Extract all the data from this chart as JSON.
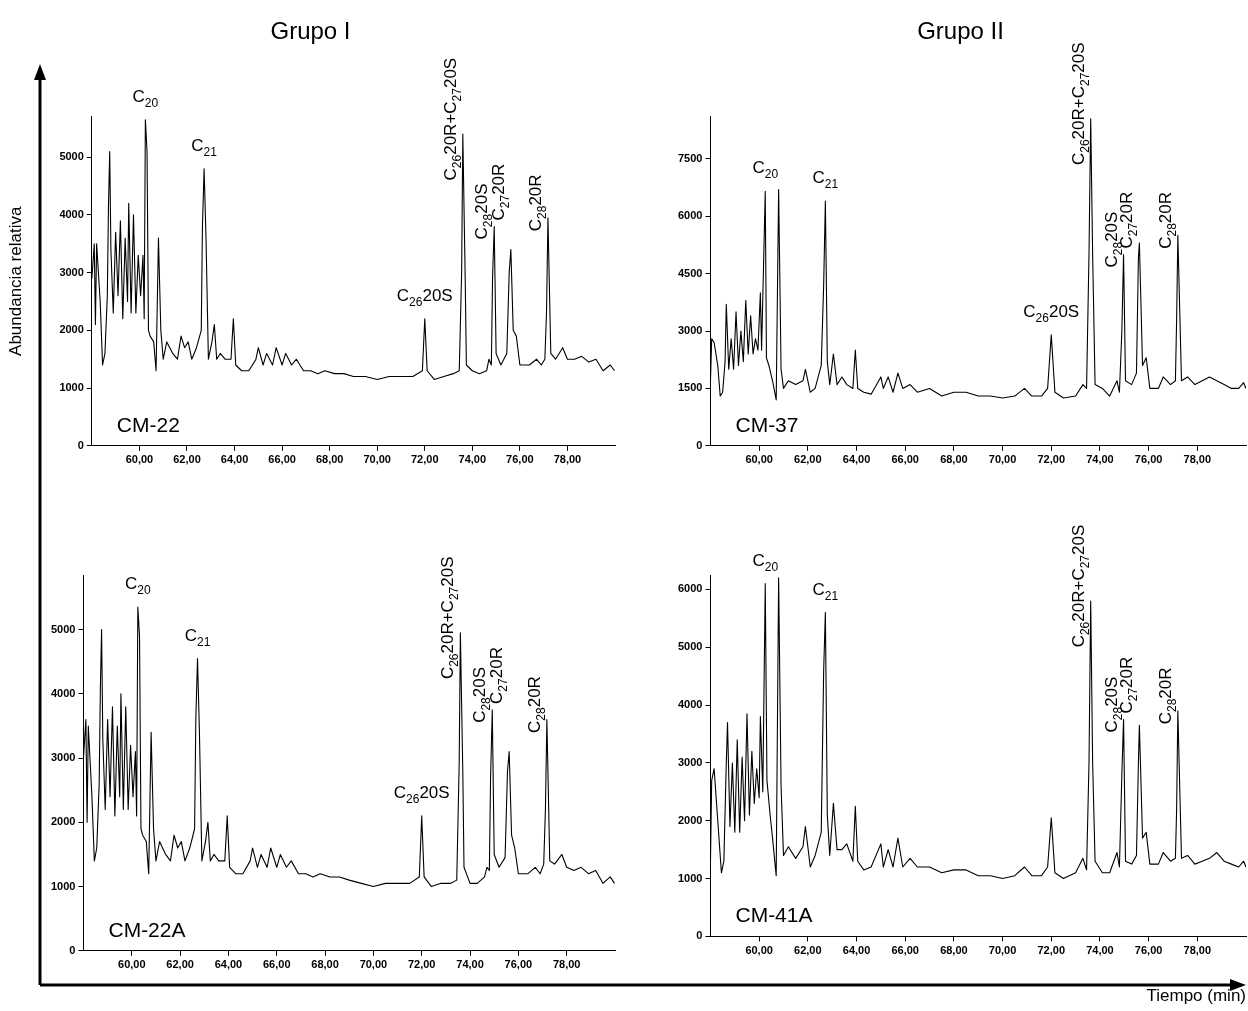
{
  "chart_data": [
    {
      "type": "line",
      "title": "Grupo I",
      "ylabel": "Abundancia relativa",
      "xlim": [
        58,
        80
      ],
      "ylim": [
        0,
        5700
      ],
      "grid": false,
      "marker": "none",
      "xticks": [
        {
          "value": 60,
          "label": "60,00"
        },
        {
          "value": 62,
          "label": "62,00"
        },
        {
          "value": 64,
          "label": "64,00"
        },
        {
          "value": 66,
          "label": "66,00"
        },
        {
          "value": 68,
          "label": "68,00"
        },
        {
          "value": 70,
          "label": "70,00"
        },
        {
          "value": 72,
          "label": "72,00"
        },
        {
          "value": 74,
          "label": "74,00"
        },
        {
          "value": 76,
          "label": "76,00"
        },
        {
          "value": 78,
          "label": "78,00"
        }
      ],
      "yticks": [
        0,
        1000,
        2000,
        3000,
        4000,
        5000
      ],
      "x": [
        58.0,
        58.1,
        58.15,
        58.2,
        58.35,
        58.45,
        58.55,
        58.65,
        58.7,
        58.75,
        58.8,
        58.9,
        59.0,
        59.1,
        59.2,
        59.3,
        59.4,
        59.5,
        59.55,
        59.65,
        59.75,
        59.85,
        59.95,
        60.05,
        60.15,
        60.2,
        60.25,
        60.32,
        60.38,
        60.45,
        60.6,
        60.7,
        60.8,
        60.9,
        61.0,
        61.15,
        61.4,
        61.6,
        61.75,
        61.9,
        62.05,
        62.2,
        62.4,
        62.6,
        62.65,
        62.72,
        62.8,
        62.9,
        63.05,
        63.15,
        63.25,
        63.4,
        63.6,
        63.85,
        63.95,
        64.05,
        64.3,
        64.6,
        64.9,
        65.0,
        65.2,
        65.35,
        65.6,
        65.75,
        66.0,
        66.15,
        66.4,
        66.6,
        66.9,
        67.2,
        67.5,
        67.8,
        68.2,
        68.6,
        69.0,
        69.5,
        70.0,
        70.5,
        71.0,
        71.5,
        71.9,
        72.0,
        72.1,
        72.4,
        72.8,
        73.2,
        73.45,
        73.55,
        73.6,
        73.7,
        73.75,
        74.0,
        74.3,
        74.6,
        74.7,
        74.8,
        74.85,
        74.92,
        75.0,
        75.2,
        75.45,
        75.55,
        75.62,
        75.72,
        75.85,
        76.0,
        76.4,
        76.7,
        76.9,
        77.05,
        77.12,
        77.18,
        77.3,
        77.5,
        77.8,
        78.0,
        78.3,
        78.6,
        78.9,
        79.2,
        79.5,
        79.8,
        79.98
      ],
      "series": [
        {
          "color": "#000000",
          "values": [
            2900,
            3500,
            2100,
            3500,
            2500,
            1400,
            1600,
            2600,
            4200,
            5100,
            3400,
            2300,
            3700,
            2600,
            3900,
            2200,
            3600,
            2500,
            4200,
            2300,
            4000,
            2300,
            3300,
            2600,
            3300,
            2200,
            5650,
            5100,
            2000,
            1900,
            1800,
            1300,
            3600,
            2000,
            1500,
            1800,
            1600,
            1500,
            1900,
            1700,
            1800,
            1500,
            1700,
            2000,
            3800,
            4800,
            3600,
            1500,
            1800,
            2100,
            1500,
            1600,
            1500,
            1500,
            2200,
            1400,
            1300,
            1300,
            1500,
            1700,
            1400,
            1600,
            1400,
            1700,
            1400,
            1600,
            1400,
            1500,
            1300,
            1300,
            1250,
            1300,
            1250,
            1250,
            1200,
            1200,
            1150,
            1200,
            1200,
            1200,
            1300,
            2200,
            1300,
            1150,
            1200,
            1250,
            1300,
            3000,
            5400,
            2900,
            1400,
            1300,
            1250,
            1300,
            1500,
            1400,
            2900,
            3800,
            1600,
            1400,
            1600,
            3000,
            3400,
            2000,
            1900,
            1400,
            1400,
            1500,
            1400,
            1500,
            2300,
            3950,
            1600,
            1500,
            1700,
            1500,
            1500,
            1550,
            1450,
            1500,
            1300,
            1400,
            1300
          ]
        }
      ],
      "annotations": [
        {
          "text": "C$_{20}$",
          "x": 60.25,
          "y": 5650
        },
        {
          "text": "C$_{21}$",
          "x": 62.72,
          "y": 4800
        },
        {
          "text": "C$_{26}$20S",
          "x": 72.0,
          "y": 2200
        },
        {
          "text": "C$_{26}$20R+C$_{27}$20S",
          "x": 73.6,
          "y": 5400
        },
        {
          "text": "C$_{28}$20S",
          "x": 74.92,
          "y": 3800
        },
        {
          "text": "C$_{27}$20R",
          "x": 75.62,
          "y": 3400
        },
        {
          "text": "C$_{28}$20R",
          "x": 77.18,
          "y": 3950
        },
        "CM-22"
      ]
    },
    {
      "type": "line",
      "title": "Grupo II",
      "xlim": [
        58,
        80
      ],
      "ylim": [
        0,
        8600
      ],
      "grid": false,
      "marker": "none",
      "xticks": [
        {
          "value": 60,
          "label": "60,00"
        },
        {
          "value": 62,
          "label": "62,00"
        },
        {
          "value": 64,
          "label": "64,00"
        },
        {
          "value": 66,
          "label": "66,00"
        },
        {
          "value": 68,
          "label": "68,00"
        },
        {
          "value": 70,
          "label": "70,00"
        },
        {
          "value": 72,
          "label": "72,00"
        },
        {
          "value": 74,
          "label": "74,00"
        },
        {
          "value": 76,
          "label": "76,00"
        },
        {
          "value": 78,
          "label": "78,00"
        }
      ],
      "yticks": [
        0,
        1500,
        3000,
        4500,
        6000,
        7500
      ],
      "x": [
        58.0,
        58.05,
        58.15,
        58.3,
        58.4,
        58.5,
        58.6,
        58.65,
        58.75,
        58.85,
        58.95,
        59.05,
        59.15,
        59.25,
        59.35,
        59.45,
        59.55,
        59.65,
        59.75,
        59.85,
        59.95,
        60.05,
        60.1,
        60.25,
        60.3,
        60.4,
        60.55,
        60.7,
        60.8,
        60.9,
        61.0,
        61.2,
        61.5,
        61.8,
        61.9,
        62.1,
        62.3,
        62.55,
        62.65,
        62.72,
        62.8,
        62.9,
        63.05,
        63.2,
        63.4,
        63.6,
        63.85,
        63.95,
        64.05,
        64.3,
        64.6,
        65.0,
        65.1,
        65.3,
        65.5,
        65.7,
        65.9,
        66.2,
        66.5,
        67.0,
        67.5,
        68.0,
        68.5,
        69.0,
        69.5,
        70.0,
        70.5,
        70.9,
        71.2,
        71.6,
        71.85,
        72.0,
        72.15,
        72.5,
        73.0,
        73.3,
        73.45,
        73.55,
        73.62,
        73.7,
        73.8,
        74.1,
        74.4,
        74.7,
        74.8,
        74.9,
        74.97,
        75.05,
        75.3,
        75.5,
        75.58,
        75.62,
        75.75,
        75.9,
        76.05,
        76.4,
        76.6,
        76.9,
        77.1,
        77.15,
        77.2,
        77.35,
        77.6,
        77.9,
        78.2,
        78.5,
        78.8,
        79.1,
        79.4,
        79.7,
        79.9,
        80.0
      ],
      "series": [
        {
          "color": "#000000",
          "values": [
            1700,
            2800,
            2700,
            2100,
            1300,
            1400,
            2200,
            3700,
            2000,
            2800,
            2000,
            3500,
            2100,
            3000,
            2200,
            3800,
            2400,
            3400,
            2400,
            2800,
            2500,
            4000,
            2500,
            6650,
            2300,
            2100,
            1700,
            1200,
            6700,
            2000,
            1500,
            1700,
            1600,
            1700,
            2000,
            1400,
            1500,
            2100,
            4200,
            6400,
            2200,
            1600,
            2400,
            1600,
            1800,
            1600,
            1500,
            2500,
            1500,
            1400,
            1350,
            1800,
            1500,
            1800,
            1400,
            1900,
            1500,
            1600,
            1400,
            1500,
            1300,
            1400,
            1400,
            1300,
            1300,
            1250,
            1300,
            1500,
            1300,
            1300,
            1500,
            2900,
            1400,
            1250,
            1300,
            1600,
            1500,
            5000,
            8550,
            5000,
            1600,
            1500,
            1300,
            1700,
            1400,
            3000,
            5000,
            1700,
            1600,
            1900,
            4900,
            5300,
            2100,
            2300,
            1500,
            1500,
            1800,
            1600,
            1700,
            3300,
            5500,
            1700,
            1800,
            1600,
            1700,
            1800,
            1700,
            1600,
            1500,
            1500,
            1650,
            1500
          ]
        }
      ],
      "annotations": [
        {
          "text": "C$_{20}$",
          "x": 60.25,
          "y": 6650
        },
        {
          "text": "C$_{21}$",
          "x": 62.72,
          "y": 6400
        },
        {
          "text": "C$_{26}$20S",
          "x": 72.0,
          "y": 2900
        },
        {
          "text": "C$_{26}$20R+C$_{27}$20S",
          "x": 73.62,
          "y": 8550
        },
        {
          "text": "C$_{28}$20S",
          "x": 74.97,
          "y": 5000
        },
        {
          "text": "C$_{27}$20R",
          "x": 75.62,
          "y": 5300
        },
        {
          "text": "C$_{28}$20R",
          "x": 77.2,
          "y": 5500
        },
        "CM-37"
      ]
    },
    {
      "type": "line",
      "xlim": [
        58,
        80
      ],
      "ylim": [
        0,
        5850
      ],
      "grid": false,
      "marker": "none",
      "xticks": [
        {
          "value": 60,
          "label": "60,00"
        },
        {
          "value": 62,
          "label": "62,00"
        },
        {
          "value": 64,
          "label": "64,00"
        },
        {
          "value": 66,
          "label": "66,00"
        },
        {
          "value": 68,
          "label": "68,00"
        },
        {
          "value": 70,
          "label": "70,00"
        },
        {
          "value": 72,
          "label": "72,00"
        },
        {
          "value": 74,
          "label": "74,00"
        },
        {
          "value": 76,
          "label": "76,00"
        },
        {
          "value": 78,
          "label": "78,00"
        }
      ],
      "yticks": [
        0,
        1000,
        2000,
        3000,
        4000,
        5000
      ],
      "x": [
        58.0,
        58.1,
        58.15,
        58.2,
        58.35,
        58.45,
        58.55,
        58.65,
        58.7,
        58.75,
        58.8,
        58.9,
        59.0,
        59.1,
        59.2,
        59.3,
        59.4,
        59.5,
        59.55,
        59.65,
        59.75,
        59.85,
        59.95,
        60.05,
        60.15,
        60.2,
        60.25,
        60.32,
        60.38,
        60.45,
        60.6,
        60.7,
        60.8,
        60.9,
        61.0,
        61.15,
        61.4,
        61.6,
        61.75,
        61.9,
        62.05,
        62.2,
        62.4,
        62.6,
        62.65,
        62.72,
        62.8,
        62.9,
        63.05,
        63.15,
        63.25,
        63.4,
        63.6,
        63.85,
        63.95,
        64.05,
        64.3,
        64.6,
        64.9,
        65.0,
        65.2,
        65.35,
        65.6,
        65.75,
        66.0,
        66.15,
        66.4,
        66.6,
        66.9,
        67.2,
        67.5,
        67.8,
        68.2,
        68.6,
        69.0,
        69.5,
        70.0,
        70.5,
        71.0,
        71.5,
        71.9,
        72.0,
        72.1,
        72.4,
        72.8,
        73.2,
        73.45,
        73.55,
        73.6,
        73.7,
        73.75,
        74.0,
        74.3,
        74.6,
        74.7,
        74.8,
        74.85,
        74.92,
        75.0,
        75.2,
        75.45,
        75.55,
        75.62,
        75.72,
        75.85,
        76.0,
        76.4,
        76.7,
        76.9,
        77.05,
        77.12,
        77.18,
        77.3,
        77.5,
        77.8,
        78.0,
        78.3,
        78.6,
        78.9,
        79.2,
        79.5,
        79.8,
        79.98
      ],
      "series": [
        {
          "color": "#000000",
          "values": [
            3000,
            3600,
            2000,
            3500,
            2400,
            1400,
            1600,
            2600,
            4100,
            5000,
            3300,
            2200,
            3600,
            2400,
            3800,
            2100,
            3500,
            2400,
            4000,
            2200,
            3800,
            2200,
            3200,
            2400,
            3100,
            2100,
            5350,
            4900,
            1900,
            1800,
            1700,
            1200,
            3400,
            1900,
            1400,
            1700,
            1500,
            1400,
            1800,
            1600,
            1700,
            1400,
            1600,
            1900,
            3600,
            4550,
            3400,
            1400,
            1700,
            2000,
            1400,
            1500,
            1400,
            1400,
            2100,
            1300,
            1200,
            1200,
            1400,
            1600,
            1300,
            1500,
            1300,
            1600,
            1300,
            1500,
            1300,
            1400,
            1200,
            1200,
            1150,
            1200,
            1150,
            1150,
            1100,
            1050,
            1000,
            1050,
            1050,
            1050,
            1150,
            2100,
            1150,
            1000,
            1050,
            1050,
            1100,
            2900,
            4950,
            2800,
            1300,
            1050,
            1050,
            1150,
            1300,
            1250,
            2700,
            3750,
            1500,
            1300,
            1450,
            2800,
            3100,
            1800,
            1600,
            1200,
            1200,
            1300,
            1200,
            1350,
            2200,
            3600,
            1400,
            1350,
            1500,
            1300,
            1250,
            1300,
            1200,
            1250,
            1050,
            1150,
            1050
          ]
        }
      ],
      "annotations": [
        {
          "text": "C$_{20}$",
          "x": 60.25,
          "y": 5350
        },
        {
          "text": "C$_{21}$",
          "x": 62.72,
          "y": 4550
        },
        {
          "text": "C$_{26}$20S",
          "x": 72.0,
          "y": 2100
        },
        {
          "text": "C$_{26}$20R+C$_{27}$20S",
          "x": 73.6,
          "y": 4950
        },
        {
          "text": "C$_{28}$20S",
          "x": 74.92,
          "y": 3750
        },
        {
          "text": "C$_{27}$20R",
          "x": 75.62,
          "y": 3100
        },
        {
          "text": "C$_{28}$20R",
          "x": 77.18,
          "y": 3600
        },
        "CM-22A"
      ]
    },
    {
      "type": "line",
      "xlabel": "Tiempo (min)",
      "xlim": [
        58,
        80
      ],
      "ylim": [
        0,
        6250
      ],
      "grid": false,
      "marker": "none",
      "xticks": [
        {
          "value": 60,
          "label": "60,00"
        },
        {
          "value": 62,
          "label": "62,00"
        },
        {
          "value": 64,
          "label": "64,00"
        },
        {
          "value": 66,
          "label": "66,00"
        },
        {
          "value": 68,
          "label": "68,00"
        },
        {
          "value": 70,
          "label": "70,00"
        },
        {
          "value": 72,
          "label": "72,00"
        },
        {
          "value": 74,
          "label": "74,00"
        },
        {
          "value": 76,
          "label": "76,00"
        },
        {
          "value": 78,
          "label": "78,00"
        }
      ],
      "yticks": [
        0,
        1000,
        2000,
        3000,
        4000,
        5000,
        6000
      ],
      "x": [
        58.0,
        58.05,
        58.15,
        58.3,
        58.45,
        58.55,
        58.65,
        58.7,
        58.8,
        58.9,
        59.0,
        59.1,
        59.2,
        59.3,
        59.4,
        59.5,
        59.6,
        59.7,
        59.8,
        59.9,
        60.0,
        60.05,
        60.15,
        60.25,
        60.32,
        60.45,
        60.55,
        60.7,
        60.8,
        60.9,
        61.0,
        61.2,
        61.5,
        61.8,
        61.9,
        62.1,
        62.3,
        62.55,
        62.65,
        62.72,
        62.8,
        62.9,
        63.05,
        63.2,
        63.4,
        63.6,
        63.85,
        63.95,
        64.05,
        64.3,
        64.6,
        65.0,
        65.1,
        65.3,
        65.5,
        65.7,
        65.9,
        66.2,
        66.5,
        67.0,
        67.5,
        68.0,
        68.5,
        69.0,
        69.5,
        70.0,
        70.5,
        70.9,
        71.2,
        71.6,
        71.85,
        72.0,
        72.15,
        72.5,
        73.0,
        73.3,
        73.45,
        73.55,
        73.62,
        73.7,
        73.8,
        74.1,
        74.4,
        74.7,
        74.8,
        74.9,
        74.97,
        75.05,
        75.3,
        75.5,
        75.58,
        75.62,
        75.75,
        75.9,
        76.05,
        76.4,
        76.6,
        76.9,
        77.1,
        77.15,
        77.2,
        77.35,
        77.6,
        77.9,
        78.2,
        78.5,
        78.8,
        79.1,
        79.4,
        79.7,
        79.9,
        80.0
      ],
      "series": [
        {
          "color": "#000000",
          "values": [
            1300,
            2700,
            2900,
            2000,
            1100,
            1300,
            3000,
            3700,
            1900,
            3000,
            1800,
            3400,
            1800,
            3100,
            2000,
            3850,
            2100,
            3200,
            2300,
            2900,
            2400,
            3800,
            2500,
            6100,
            2700,
            2100,
            1700,
            1050,
            6200,
            2600,
            1400,
            1550,
            1350,
            1550,
            1900,
            1200,
            1400,
            1800,
            4600,
            5600,
            2100,
            1400,
            2300,
            1500,
            1500,
            1600,
            1300,
            2250,
            1300,
            1150,
            1200,
            1600,
            1200,
            1500,
            1200,
            1700,
            1200,
            1350,
            1200,
            1200,
            1100,
            1150,
            1150,
            1050,
            1050,
            1000,
            1050,
            1200,
            1050,
            1050,
            1200,
            2050,
            1100,
            1000,
            1100,
            1350,
            1150,
            3000,
            5800,
            3000,
            1300,
            1100,
            1100,
            1450,
            1200,
            2800,
            3750,
            1300,
            1250,
            1400,
            3000,
            3650,
            1700,
            1800,
            1250,
            1250,
            1450,
            1300,
            1350,
            2200,
            3900,
            1350,
            1400,
            1250,
            1300,
            1350,
            1450,
            1300,
            1250,
            1200,
            1300,
            1200
          ]
        }
      ],
      "annotations": [
        {
          "text": "C$_{20}$",
          "x": 60.25,
          "y": 6100
        },
        {
          "text": "C$_{21}$",
          "x": 62.72,
          "y": 5600
        },
        {
          "text": "C$_{26}$20R+C$_{27}$20S",
          "x": 73.62,
          "y": 5800
        },
        {
          "text": "C$_{28}$20S",
          "x": 74.97,
          "y": 3750
        },
        {
          "text": "C$_{27}$20R",
          "x": 75.62,
          "y": 3650
        },
        {
          "text": "C$_{28}$20R",
          "x": 77.2,
          "y": 3900
        },
        "CM-41A"
      ]
    }
  ]
}
